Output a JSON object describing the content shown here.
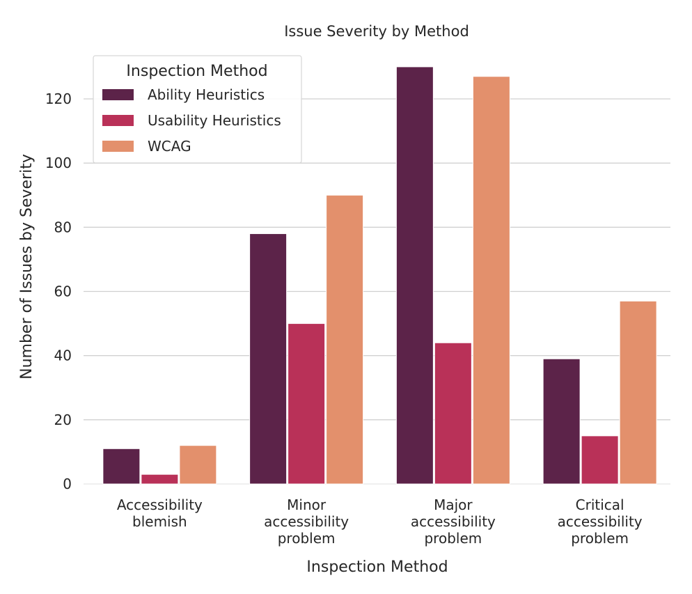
{
  "chart_data": {
    "type": "bar",
    "title": "Issue Severity by Method",
    "xlabel": "Inspection Method",
    "ylabel": "Number of Issues by Severity",
    "ylim": [
      0,
      135
    ],
    "yticks": [
      0,
      20,
      40,
      60,
      80,
      100,
      120
    ],
    "grid": true,
    "categories": [
      [
        "Accessibility",
        "blemish"
      ],
      [
        "Minor",
        "accessibility",
        "problem"
      ],
      [
        "Major",
        "accessibility",
        "problem"
      ],
      [
        "Critical",
        "accessibility",
        "problem"
      ]
    ],
    "legend": {
      "title": "Inspection Method",
      "placement": "top-left"
    },
    "series": [
      {
        "name": "Ability Heuristics",
        "color": "#5c2349",
        "values": [
          11,
          78,
          130,
          39
        ]
      },
      {
        "name": "Usability Heuristics",
        "color": "#b93158",
        "values": [
          3,
          50,
          44,
          15
        ]
      },
      {
        "name": "WCAG",
        "color": "#e3906c",
        "values": [
          12,
          90,
          127,
          57
        ]
      }
    ]
  }
}
